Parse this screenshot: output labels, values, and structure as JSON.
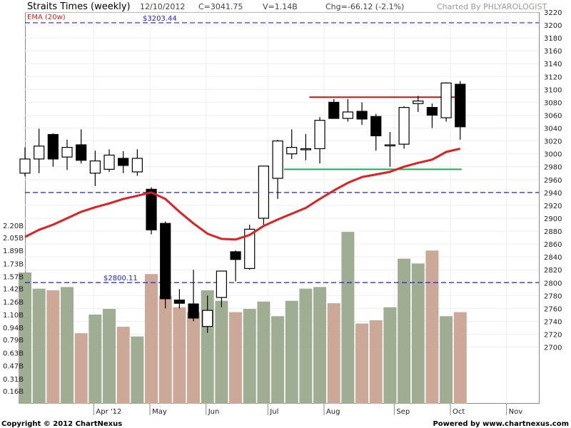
{
  "header": {
    "title": "Straits Times (weekly)",
    "date": "12/10/2012",
    "close": "C=3041.75",
    "volume": "V=1.14B",
    "change": "Chg=-66.12 (-2.1%)",
    "credit": "Charted By PHLYAROLOGIST"
  },
  "legend": {
    "ema_label": "EMA (20w)"
  },
  "footer": {
    "copyright": "Copyright © 2012 ChartNexus",
    "powered": "Powered by www.chartnexus.com"
  },
  "colors": {
    "ema": "#e02020",
    "up_volume": "#9fae93",
    "down_volume": "#cba898",
    "reference_line": "#2222cc",
    "resistance": "#cc1111",
    "support": "#22aa55"
  },
  "chart_data": {
    "type": "candlestick",
    "price_axis": {
      "min": 2700,
      "max": 3220,
      "step": 20,
      "ticks": [
        "3220",
        "3200",
        "3180",
        "3160",
        "3140",
        "3120",
        "3100",
        "3080",
        "3060",
        "3040",
        "3020",
        "3000",
        "2980",
        "2960",
        "2940",
        "2920",
        "2900",
        "2880",
        "2860",
        "2840",
        "2820",
        "2800",
        "2780",
        "2760",
        "2740",
        "2720",
        "2700"
      ]
    },
    "volume_axis": {
      "max": 2.2,
      "ticks": [
        "2.20B",
        "2.05B",
        "1.89B",
        "1.73B",
        "1.57B",
        "1.42B",
        "1.26B",
        "1.10B",
        "0.94B",
        "0.79B",
        "0.63B",
        "0.47B",
        "0.31B",
        "0.16B"
      ]
    },
    "months": [
      "Apr '12",
      "May",
      "Jun",
      "Jul",
      "Aug",
      "Sep",
      "Oct",
      "Nov"
    ],
    "candles": [
      {
        "o": 2970,
        "h": 3010,
        "l": 2965,
        "c": 2992,
        "v": 1.62
      },
      {
        "o": 2992,
        "h": 3039,
        "l": 2970,
        "c": 3012,
        "v": 1.42
      },
      {
        "o": 3030,
        "h": 3032,
        "l": 2980,
        "c": 2992,
        "v": 1.4
      },
      {
        "o": 2995,
        "h": 3022,
        "l": 2975,
        "c": 3010,
        "v": 1.44
      },
      {
        "o": 3014,
        "h": 3038,
        "l": 2985,
        "c": 2990,
        "v": 0.87
      },
      {
        "o": 2970,
        "h": 3005,
        "l": 2950,
        "c": 2989,
        "v": 1.1
      },
      {
        "o": 2976,
        "h": 3007,
        "l": 2972,
        "c": 2998,
        "v": 1.17
      },
      {
        "o": 2993,
        "h": 3004,
        "l": 2970,
        "c": 2982,
        "v": 0.95
      },
      {
        "o": 2972,
        "h": 3007,
        "l": 2966,
        "c": 2993,
        "v": 0.83
      },
      {
        "o": 2945,
        "h": 2948,
        "l": 2875,
        "c": 2882,
        "v": 1.6
      },
      {
        "o": 2892,
        "h": 2895,
        "l": 2760,
        "c": 2775,
        "v": 1.33
      },
      {
        "o": 2773,
        "h": 2790,
        "l": 2760,
        "c": 2768,
        "v": 1.19
      },
      {
        "o": 2767,
        "h": 2820,
        "l": 2740,
        "c": 2745,
        "v": 1.13
      },
      {
        "o": 2732,
        "h": 2780,
        "l": 2722,
        "c": 2757,
        "v": 1.4
      },
      {
        "o": 2777,
        "h": 2818,
        "l": 2762,
        "c": 2818,
        "v": 1.27
      },
      {
        "o": 2848,
        "h": 2850,
        "l": 2802,
        "c": 2836,
        "v": 1.13
      },
      {
        "o": 2822,
        "h": 2890,
        "l": 2820,
        "c": 2883,
        "v": 1.17
      },
      {
        "o": 2900,
        "h": 2981,
        "l": 2890,
        "c": 2981,
        "v": 1.26
      },
      {
        "o": 2962,
        "h": 3022,
        "l": 2930,
        "c": 3020,
        "v": 1.08
      },
      {
        "o": 3000,
        "h": 3038,
        "l": 2992,
        "c": 3010,
        "v": 1.27
      },
      {
        "o": 3008,
        "h": 3031,
        "l": 2990,
        "c": 3008,
        "v": 1.42
      },
      {
        "o": 3008,
        "h": 3057,
        "l": 2985,
        "c": 3052,
        "v": 1.44
      },
      {
        "o": 3080,
        "h": 3085,
        "l": 3055,
        "c": 3055,
        "v": 1.24
      },
      {
        "o": 3055,
        "h": 3085,
        "l": 3050,
        "c": 3065,
        "v": 2.12
      },
      {
        "o": 3066,
        "h": 3080,
        "l": 3045,
        "c": 3054,
        "v": 0.99
      },
      {
        "o": 3058,
        "h": 3062,
        "l": 3005,
        "c": 3028,
        "v": 1.03
      },
      {
        "o": 3013,
        "h": 3034,
        "l": 2980,
        "c": 3014,
        "v": 1.19
      },
      {
        "o": 3015,
        "h": 3074,
        "l": 3008,
        "c": 3072,
        "v": 1.79
      },
      {
        "o": 3078,
        "h": 3090,
        "l": 3065,
        "c": 3082,
        "v": 1.73
      },
      {
        "o": 3072,
        "h": 3078,
        "l": 3040,
        "c": 3060,
        "v": 1.89
      },
      {
        "o": 3056,
        "h": 3111,
        "l": 3050,
        "c": 3110,
        "v": 1.08
      },
      {
        "o": 3108,
        "h": 3113,
        "l": 3022,
        "c": 3042,
        "v": 1.13
      }
    ],
    "ema_20w": [
      2871,
      2882,
      2890,
      2900,
      2910,
      2917,
      2923,
      2930,
      2935,
      2940,
      2930,
      2910,
      2892,
      2876,
      2868,
      2867,
      2874,
      2888,
      2898,
      2907,
      2916,
      2930,
      2943,
      2955,
      2964,
      2968,
      2972,
      2980,
      2986,
      2991,
      3003,
      3008
    ],
    "reference_lines": [
      {
        "value": 3203.44,
        "label": "$3203.44"
      },
      {
        "value": 2940,
        "label": ""
      },
      {
        "value": 2800.11,
        "label": "$2800.11"
      }
    ],
    "resistance": {
      "value": 3088,
      "from_index": 20,
      "to_index": 31
    },
    "support": {
      "value": 2976,
      "from_index": 18,
      "to_index": 31
    }
  }
}
